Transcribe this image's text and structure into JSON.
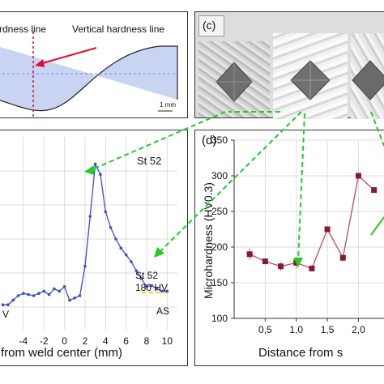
{
  "panel_weld": {
    "horizontal_label": "rdness line",
    "vertical_label": "Vertical hardness line",
    "scale_label": "1 mm"
  },
  "panel_c": {
    "label": "(c)"
  },
  "panel_left": {
    "series_label": "St 52",
    "bm_label_line1": "St 52",
    "bm_label_line2": "180 HV",
    "left_side_label": "V",
    "right_side_label": "AS",
    "xlabel": "from weld center (mm)"
  },
  "panel_d": {
    "label": "(d)",
    "ylabel": "Microhardness (HV0.3)",
    "xlabel": "Distance from s"
  },
  "colors": {
    "profile_fill": "#c9d3f2",
    "line_blue": "#3b4fc4",
    "line_red": "#b55a6a",
    "arrow_green": "#22cc22",
    "vertical_line": "#c0143c",
    "arrow_red": "#e0102a",
    "bm_band": "#f0e040"
  },
  "chart_data": [
    {
      "type": "line",
      "title": "",
      "xlabel": "from weld center (mm)",
      "ylabel": "",
      "xlim": [
        -6.2,
        11
      ],
      "ylim": [
        150,
        320
      ],
      "x_ticks": [
        -4,
        -2,
        0,
        2,
        4,
        6,
        8,
        10
      ],
      "series": [
        {
          "name": "St 52",
          "x": [
            -6.0,
            -5.5,
            -5.0,
            -4.5,
            -4.0,
            -3.5,
            -3.0,
            -2.5,
            -2.0,
            -1.5,
            -1.0,
            -0.5,
            0.0,
            0.5,
            1.0,
            1.5,
            2.0,
            2.5,
            3.0,
            3.5,
            4.0,
            4.5,
            5.0,
            5.5,
            6.0,
            6.5,
            7.0,
            7.5,
            8.0,
            8.5,
            9.0,
            9.5,
            10.0
          ],
          "y": [
            172,
            172,
            176,
            180,
            182,
            181,
            180,
            182,
            184,
            181,
            186,
            184,
            188,
            176,
            178,
            180,
            206,
            250,
            296,
            287,
            254,
            240,
            230,
            222,
            216,
            210,
            202,
            195,
            188,
            189,
            186,
            184,
            184
          ]
        }
      ],
      "reference_line": {
        "name": "St 52 180 HV",
        "y": 180,
        "x": [
          7.5,
          10.2
        ]
      }
    },
    {
      "type": "line",
      "title": "",
      "xlabel": "Distance from s",
      "ylabel": "Microhardness (HV0.3)",
      "xlim": [
        0,
        2.45
      ],
      "ylim": [
        100,
        350
      ],
      "x_ticks": [
        "0,5",
        "1,0",
        "1,5",
        "2,0"
      ],
      "x_tick_values": [
        0.5,
        1.0,
        1.5,
        2.0
      ],
      "y_ticks": [
        100,
        150,
        200,
        250,
        300,
        350
      ],
      "series": [
        {
          "name": "",
          "x": [
            0.25,
            0.5,
            0.75,
            1.0,
            1.25,
            1.5,
            1.75,
            2.0,
            2.25
          ],
          "y": [
            190,
            180,
            173,
            178,
            170,
            225,
            185,
            300,
            280
          ],
          "err": [
            8,
            4,
            6,
            8,
            4,
            4,
            4,
            4,
            4
          ]
        }
      ]
    }
  ]
}
